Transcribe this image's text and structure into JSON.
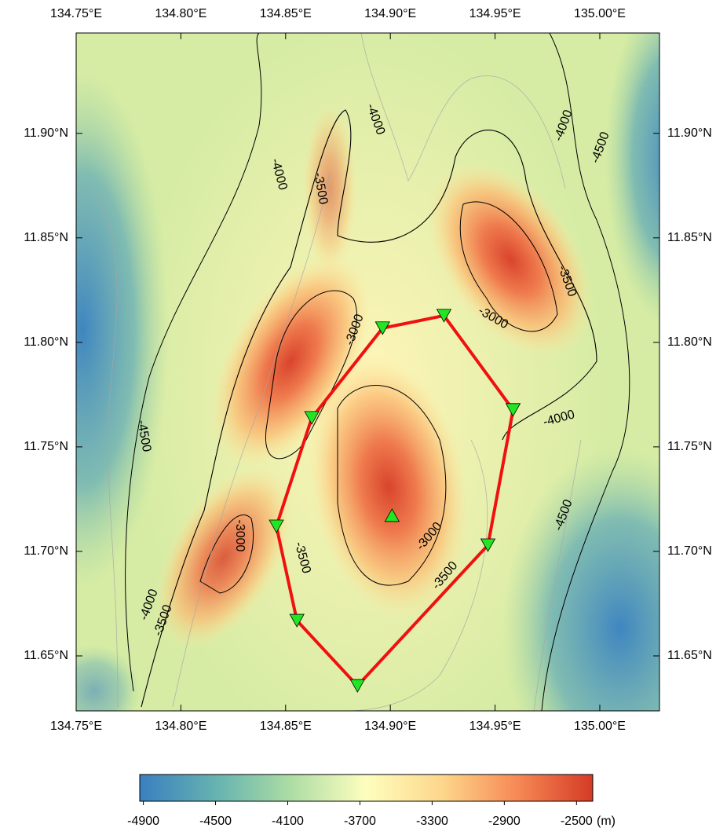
{
  "map": {
    "xlim": [
      134.75,
      135.0285
    ],
    "ylim": [
      11.6237,
      11.948
    ],
    "xticks": [
      {
        "value": 134.75,
        "label": "134.75°E"
      },
      {
        "value": 134.8,
        "label": "134.80°E"
      },
      {
        "value": 134.85,
        "label": "134.85°E"
      },
      {
        "value": 134.9,
        "label": "134.90°E"
      },
      {
        "value": 134.95,
        "label": "134.95°E"
      },
      {
        "value": 135.0,
        "label": "135.00°E"
      }
    ],
    "yticks": [
      {
        "value": 11.9,
        "label": "11.90°N"
      },
      {
        "value": 11.85,
        "label": "11.85°N"
      },
      {
        "value": 11.8,
        "label": "11.80°N"
      },
      {
        "value": 11.75,
        "label": "11.75°N"
      },
      {
        "value": 11.7,
        "label": "11.70°N"
      },
      {
        "value": 11.65,
        "label": "11.65°N"
      }
    ],
    "stations": {
      "lon": [
        134.8963,
        134.9256,
        134.9586,
        134.9466,
        134.8843,
        134.8554,
        134.8456,
        134.8625
      ],
      "lat": [
        11.8068,
        11.8128,
        11.7677,
        11.703,
        11.6357,
        11.6669,
        11.712,
        11.7639
      ]
    },
    "center_station": {
      "lon": 134.9008,
      "lat": 11.7173
    },
    "contour_labels": [
      -4000,
      -4000,
      -3500,
      -4000,
      -4500,
      -3500,
      -3000,
      -3000,
      -4000,
      -4500,
      -3000,
      -3500,
      -3000,
      -3500,
      -4500,
      -4000,
      -3500
    ],
    "colorbar": {
      "lim": [
        -4920,
        -2410
      ],
      "ticks": [
        -4900,
        -4500,
        -4100,
        -3700,
        -3300,
        -2900,
        -2500
      ],
      "unit": "(m)"
    }
  }
}
